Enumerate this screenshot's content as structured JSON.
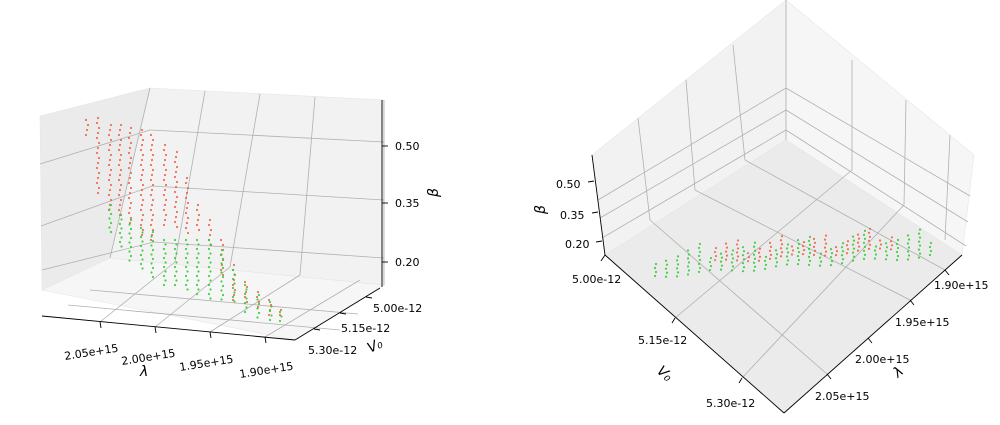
{
  "chart_data": [
    {
      "type": "scatter3d",
      "view": "left",
      "axes": {
        "x": {
          "label": "λ",
          "ticks": [
            "2.05e+15",
            "2.00e+15",
            "1.95e+15",
            "1.90e+15"
          ]
        },
        "y": {
          "label": "V₀",
          "ticks": [
            "5.00e-12",
            "5.15e-12",
            "5.30e-12"
          ]
        },
        "z": {
          "label": "β",
          "ticks": [
            "0.50",
            "0.35",
            "0.20"
          ]
        }
      },
      "series_colors": {
        "red": "#f05a3c",
        "green": "#33cc33"
      }
    },
    {
      "type": "scatter3d",
      "view": "top-down",
      "axes": {
        "x": {
          "label": "λ",
          "ticks": [
            "1.90e+15",
            "1.95e+15",
            "2.00e+15",
            "2.05e+15"
          ]
        },
        "y": {
          "label": "V₀",
          "ticks": [
            "5.00e-12",
            "5.15e-12",
            "5.30e-12"
          ]
        },
        "z": {
          "label": "β",
          "ticks": [
            "0.50",
            "0.35",
            "0.20"
          ]
        }
      },
      "series_colors": {
        "red": "#f05a3c",
        "green": "#33cc33"
      }
    }
  ]
}
